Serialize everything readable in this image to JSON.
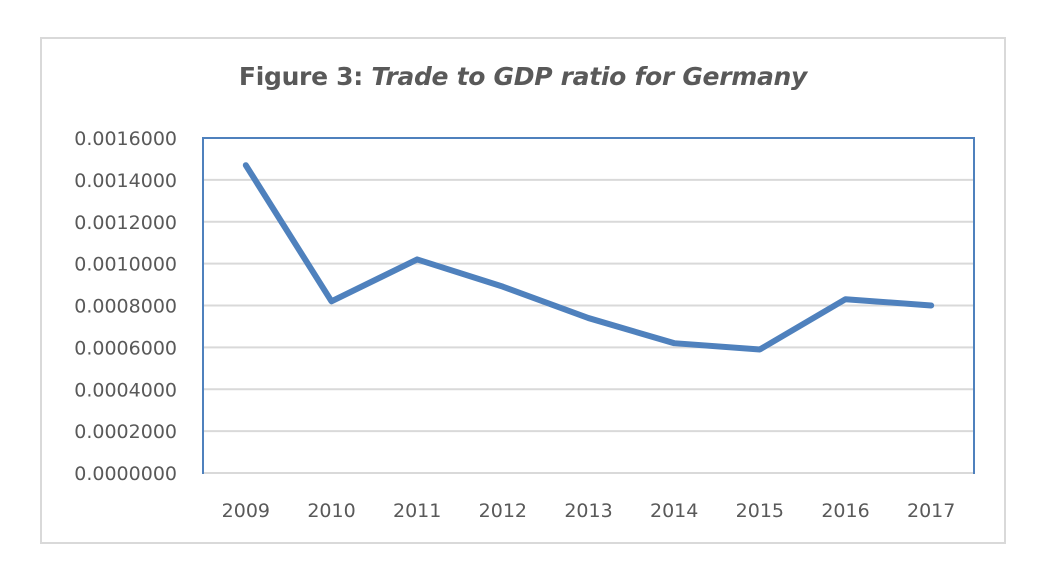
{
  "chart_data": {
    "type": "line",
    "title_prefix": "Figure 3: ",
    "title_italic": "Trade to GDP ratio for Germany",
    "title": "Figure 3: Trade to GDP ratio for Germany",
    "xlabel": "",
    "ylabel": "",
    "categories": [
      "2009",
      "2010",
      "2011",
      "2012",
      "2013",
      "2014",
      "2015",
      "2016",
      "2017"
    ],
    "series": [
      {
        "name": "Trade to GDP ratio",
        "color": "#4f81bd",
        "values": [
          0.00147,
          0.00082,
          0.00102,
          0.00089,
          0.00074,
          0.00062,
          0.00059,
          0.00083,
          0.0008
        ]
      }
    ],
    "ylim": [
      0,
      0.0016
    ],
    "yticks": [
      0,
      0.0002,
      0.0004,
      0.0006,
      0.0008,
      0.001,
      0.0012,
      0.0014,
      0.0016
    ],
    "ytick_labels": [
      "0.0000000",
      "0.0002000",
      "0.0004000",
      "0.0006000",
      "0.0008000",
      "0.0010000",
      "0.0012000",
      "0.0014000",
      "0.0016000"
    ],
    "grid": true,
    "legend": "none",
    "colors": {
      "line": "#4f81bd",
      "plot_border": "#4f81bd",
      "grid": "#d9d9d9",
      "text": "#595959",
      "frame": "#d9d9d9"
    }
  }
}
